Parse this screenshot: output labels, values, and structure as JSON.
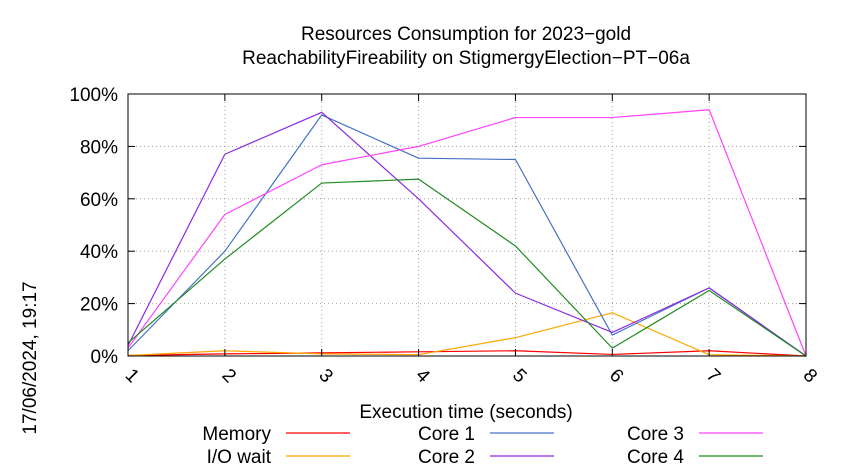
{
  "chart_data": {
    "type": "line",
    "title": "Resources Consumption for 2023−gold",
    "subtitle": "ReachabilityFireability on StigmergyElection−PT−06a",
    "xlabel": "Execution time (seconds)",
    "ylabel": "",
    "side_label": "17/06/2024, 19:17",
    "xlim": [
      1,
      8
    ],
    "ylim": [
      0,
      100
    ],
    "x_ticks": [
      "1",
      "2",
      "3",
      "4",
      "5",
      "6",
      "7",
      "8"
    ],
    "y_ticks": [
      "0%",
      "20%",
      "40%",
      "60%",
      "80%",
      "100%"
    ],
    "grid": true,
    "legend_placement": "bottom",
    "x": [
      1,
      2,
      3,
      4,
      5,
      6,
      7,
      8
    ],
    "series": [
      {
        "name": "Memory",
        "color": "#ff0000",
        "values": [
          0.2,
          0.8,
          1.2,
          1.6,
          2.0,
          0.6,
          2.0,
          0
        ]
      },
      {
        "name": "I/O wait",
        "color": "#ffa500",
        "values": [
          0.2,
          2.0,
          0.8,
          0.5,
          7.0,
          16.5,
          0.5,
          0
        ]
      },
      {
        "name": "Core 1",
        "color": "#4472c4",
        "values": [
          2,
          40,
          92,
          75.5,
          75,
          8,
          26,
          0
        ]
      },
      {
        "name": "Core 2",
        "color": "#8a2be2",
        "values": [
          4,
          77,
          93,
          60,
          24,
          9,
          26,
          0
        ]
      },
      {
        "name": "Core 3",
        "color": "#ff44ff",
        "values": [
          3,
          54,
          73,
          80,
          91,
          91,
          94,
          0
        ]
      },
      {
        "name": "Core 4",
        "color": "#228b22",
        "values": [
          5,
          37,
          66,
          67.5,
          42,
          3,
          25,
          0
        ]
      }
    ]
  }
}
